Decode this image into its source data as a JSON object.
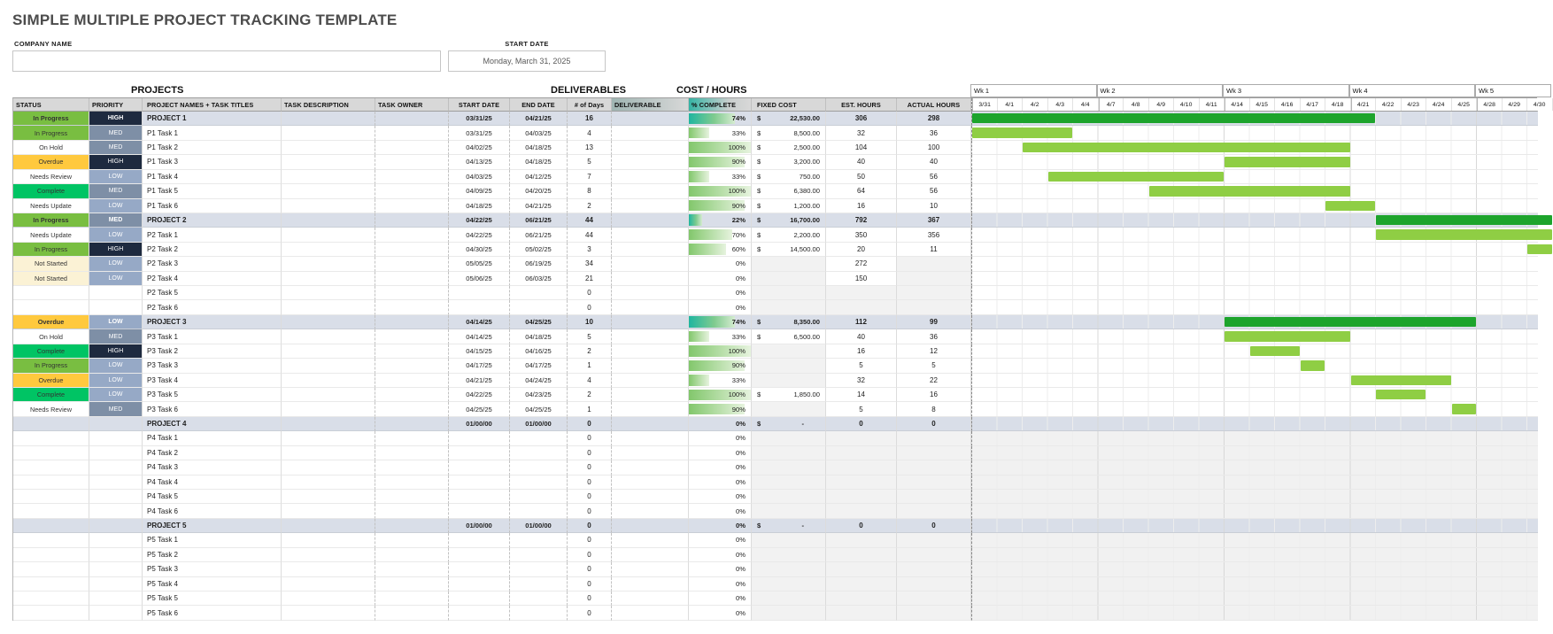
{
  "title": "SIMPLE MULTIPLE PROJECT TRACKING TEMPLATE",
  "form": {
    "company_name_label": "COMPANY NAME",
    "company_name_value": "",
    "start_date_label": "START DATE",
    "start_date_value": "Monday, March 31, 2025"
  },
  "section_labels": {
    "projects": "PROJECTS",
    "deliverables": "DELIVERABLES",
    "cost_hours": "COST / HOURS"
  },
  "colors": {
    "status": {
      "In Progress": "#79BE41",
      "Complete": "#00C464",
      "Overdue": "#FFC93E",
      "On Hold": "#FFFFFF",
      "Needs Review": "#FFFFFF",
      "Needs Update": "#FFFFFF",
      "Not Started": "#FBF2D5"
    },
    "priority": {
      "HIGH": "#1E2A3F",
      "MED": "#7E8FA6",
      "LOW": "#96A9C6"
    },
    "gantt_project_bar": "#1DA42C",
    "gantt_task_bar": "#8FCE44",
    "header_accent_teal": "#35B3A4",
    "project_row_bg": "#D9DEE8"
  },
  "table": {
    "columns": [
      {
        "key": "status",
        "label": "STATUS"
      },
      {
        "key": "priority",
        "label": "PRIORITY"
      },
      {
        "key": "name",
        "label": "PROJECT NAMES + TASK TITLES"
      },
      {
        "key": "desc",
        "label": "TASK DESCRIPTION"
      },
      {
        "key": "owner",
        "label": "TASK OWNER"
      },
      {
        "key": "start",
        "label": "START DATE"
      },
      {
        "key": "end",
        "label": "END DATE"
      },
      {
        "key": "days",
        "label": "# of Days"
      },
      {
        "key": "deliverable",
        "label": "DELIVERABLE"
      },
      {
        "key": "pct",
        "label": "% COMPLETE"
      },
      {
        "key": "fixed",
        "label": "FIXED COST"
      },
      {
        "key": "est",
        "label": "EST. HOURS"
      },
      {
        "key": "actual",
        "label": "ACTUAL HOURS"
      }
    ],
    "rows": [
      {
        "status": "In Progress",
        "priority": "HIGH",
        "name": "PROJECT 1",
        "desc": "",
        "owner": "",
        "start": "03/31/25",
        "end": "04/21/25",
        "days": "16",
        "deliverable": "",
        "pct": "74%",
        "fixed": "22,530.00",
        "est": "306",
        "actual": "298",
        "kind": "project",
        "bar": [
          0,
          15
        ]
      },
      {
        "status": "In Progress",
        "priority": "MED",
        "name": "P1 Task 1",
        "desc": "",
        "owner": "",
        "start": "03/31/25",
        "end": "04/03/25",
        "days": "4",
        "deliverable": "",
        "pct": "33%",
        "fixed": "8,500.00",
        "est": "32",
        "actual": "36",
        "kind": "task",
        "bar": [
          0,
          3
        ]
      },
      {
        "status": "On Hold",
        "priority": "MED",
        "name": "P1 Task 2",
        "desc": "",
        "owner": "",
        "start": "04/02/25",
        "end": "04/18/25",
        "days": "13",
        "deliverable": "",
        "pct": "100%",
        "fixed": "2,500.00",
        "est": "104",
        "actual": "100",
        "kind": "task",
        "bar": [
          2,
          14
        ]
      },
      {
        "status": "Overdue",
        "priority": "HIGH",
        "name": "P1 Task 3",
        "desc": "",
        "owner": "",
        "start": "04/13/25",
        "end": "04/18/25",
        "days": "5",
        "deliverable": "",
        "pct": "90%",
        "fixed": "3,200.00",
        "est": "40",
        "actual": "40",
        "kind": "task",
        "bar": [
          10,
          14
        ]
      },
      {
        "status": "Needs Review",
        "priority": "LOW",
        "name": "P1 Task 4",
        "desc": "",
        "owner": "",
        "start": "04/03/25",
        "end": "04/12/25",
        "days": "7",
        "deliverable": "",
        "pct": "33%",
        "fixed": "750.00",
        "est": "50",
        "actual": "56",
        "kind": "task",
        "bar": [
          3,
          9
        ]
      },
      {
        "status": "Complete",
        "priority": "MED",
        "name": "P1 Task 5",
        "desc": "",
        "owner": "",
        "start": "04/09/25",
        "end": "04/20/25",
        "days": "8",
        "deliverable": "",
        "pct": "100%",
        "fixed": "6,380.00",
        "est": "64",
        "actual": "56",
        "kind": "task",
        "bar": [
          7,
          14
        ]
      },
      {
        "status": "Needs Update",
        "priority": "LOW",
        "name": "P1 Task 6",
        "desc": "",
        "owner": "",
        "start": "04/18/25",
        "end": "04/21/25",
        "days": "2",
        "deliverable": "",
        "pct": "90%",
        "fixed": "1,200.00",
        "est": "16",
        "actual": "10",
        "kind": "task",
        "bar": [
          14,
          15
        ]
      },
      {
        "status": "In Progress",
        "priority": "MED",
        "name": "PROJECT 2",
        "desc": "",
        "owner": "",
        "start": "04/22/25",
        "end": "06/21/25",
        "days": "44",
        "deliverable": "",
        "pct": "22%",
        "fixed": "16,700.00",
        "est": "792",
        "actual": "367",
        "kind": "project",
        "bar": [
          16,
          22
        ]
      },
      {
        "status": "Needs Update",
        "priority": "LOW",
        "name": "P2 Task 1",
        "desc": "",
        "owner": "",
        "start": "04/22/25",
        "end": "06/21/25",
        "days": "44",
        "deliverable": "",
        "pct": "70%",
        "fixed": "2,200.00",
        "est": "350",
        "actual": "356",
        "kind": "task",
        "bar": [
          16,
          22
        ]
      },
      {
        "status": "In Progress",
        "priority": "HIGH",
        "name": "P2 Task 2",
        "desc": "",
        "owner": "",
        "start": "04/30/25",
        "end": "05/02/25",
        "days": "3",
        "deliverable": "",
        "pct": "60%",
        "fixed": "14,500.00",
        "est": "20",
        "actual": "11",
        "kind": "task",
        "bar": [
          22,
          22
        ]
      },
      {
        "status": "Not Started",
        "priority": "LOW",
        "name": "P2 Task 3",
        "desc": "",
        "owner": "",
        "start": "05/05/25",
        "end": "06/19/25",
        "days": "34",
        "deliverable": "",
        "pct": "0%",
        "fixed": "",
        "est": "272",
        "actual": "",
        "kind": "task",
        "bar": null
      },
      {
        "status": "Not Started",
        "priority": "LOW",
        "name": "P2 Task 4",
        "desc": "",
        "owner": "",
        "start": "05/06/25",
        "end": "06/03/25",
        "days": "21",
        "deliverable": "",
        "pct": "0%",
        "fixed": "",
        "est": "150",
        "actual": "",
        "kind": "task",
        "bar": null
      },
      {
        "status": "",
        "priority": "",
        "name": "P2 Task 5",
        "desc": "",
        "owner": "",
        "start": "",
        "end": "",
        "days": "0",
        "deliverable": "",
        "pct": "0%",
        "fixed": "",
        "est": "",
        "actual": "",
        "kind": "task",
        "bar": null
      },
      {
        "status": "",
        "priority": "",
        "name": "P2 Task 6",
        "desc": "",
        "owner": "",
        "start": "",
        "end": "",
        "days": "0",
        "deliverable": "",
        "pct": "0%",
        "fixed": "",
        "est": "",
        "actual": "",
        "kind": "task",
        "bar": null
      },
      {
        "status": "Overdue",
        "priority": "LOW",
        "name": "PROJECT 3",
        "desc": "",
        "owner": "",
        "start": "04/14/25",
        "end": "04/25/25",
        "days": "10",
        "deliverable": "",
        "pct": "74%",
        "fixed": "8,350.00",
        "est": "112",
        "actual": "99",
        "kind": "project",
        "bar": [
          10,
          19
        ]
      },
      {
        "status": "On Hold",
        "priority": "MED",
        "name": "P3 Task 1",
        "desc": "",
        "owner": "",
        "start": "04/14/25",
        "end": "04/18/25",
        "days": "5",
        "deliverable": "",
        "pct": "33%",
        "fixed": "6,500.00",
        "est": "40",
        "actual": "36",
        "kind": "task",
        "bar": [
          10,
          14
        ]
      },
      {
        "status": "Complete",
        "priority": "HIGH",
        "name": "P3 Task 2",
        "desc": "",
        "owner": "",
        "start": "04/15/25",
        "end": "04/16/25",
        "days": "2",
        "deliverable": "",
        "pct": "100%",
        "fixed": "",
        "est": "16",
        "actual": "12",
        "kind": "task",
        "bar": [
          11,
          12
        ]
      },
      {
        "status": "In Progress",
        "priority": "LOW",
        "name": "P3 Task 3",
        "desc": "",
        "owner": "",
        "start": "04/17/25",
        "end": "04/17/25",
        "days": "1",
        "deliverable": "",
        "pct": "90%",
        "fixed": "",
        "est": "5",
        "actual": "5",
        "kind": "task",
        "bar": [
          13,
          13
        ]
      },
      {
        "status": "Overdue",
        "priority": "LOW",
        "name": "P3 Task 4",
        "desc": "",
        "owner": "",
        "start": "04/21/25",
        "end": "04/24/25",
        "days": "4",
        "deliverable": "",
        "pct": "33%",
        "fixed": "",
        "est": "32",
        "actual": "22",
        "kind": "task",
        "bar": [
          15,
          18
        ]
      },
      {
        "status": "Complete",
        "priority": "LOW",
        "name": "P3 Task 5",
        "desc": "",
        "owner": "",
        "start": "04/22/25",
        "end": "04/23/25",
        "days": "2",
        "deliverable": "",
        "pct": "100%",
        "fixed": "1,850.00",
        "est": "14",
        "actual": "16",
        "kind": "task",
        "bar": [
          16,
          17
        ]
      },
      {
        "status": "Needs Review",
        "priority": "MED",
        "name": "P3 Task 6",
        "desc": "",
        "owner": "",
        "start": "04/25/25",
        "end": "04/25/25",
        "days": "1",
        "deliverable": "",
        "pct": "90%",
        "fixed": "",
        "est": "5",
        "actual": "8",
        "kind": "task",
        "bar": [
          19,
          19
        ]
      },
      {
        "status": "",
        "priority": "",
        "name": "PROJECT 4",
        "desc": "",
        "owner": "",
        "start": "01/00/00",
        "end": "01/00/00",
        "days": "0",
        "deliverable": "",
        "pct": "0%",
        "fixed": "-",
        "est": "0",
        "actual": "0",
        "kind": "project",
        "bar": null
      },
      {
        "status": "",
        "priority": "",
        "name": "P4 Task 1",
        "desc": "",
        "owner": "",
        "start": "",
        "end": "",
        "days": "0",
        "deliverable": "",
        "pct": "0%",
        "fixed": "",
        "est": "",
        "actual": "",
        "kind": "task",
        "bar": null
      },
      {
        "status": "",
        "priority": "",
        "name": "P4 Task 2",
        "desc": "",
        "owner": "",
        "start": "",
        "end": "",
        "days": "0",
        "deliverable": "",
        "pct": "0%",
        "fixed": "",
        "est": "",
        "actual": "",
        "kind": "task",
        "bar": null
      },
      {
        "status": "",
        "priority": "",
        "name": "P4 Task 3",
        "desc": "",
        "owner": "",
        "start": "",
        "end": "",
        "days": "0",
        "deliverable": "",
        "pct": "0%",
        "fixed": "",
        "est": "",
        "actual": "",
        "kind": "task",
        "bar": null
      },
      {
        "status": "",
        "priority": "",
        "name": "P4 Task 4",
        "desc": "",
        "owner": "",
        "start": "",
        "end": "",
        "days": "0",
        "deliverable": "",
        "pct": "0%",
        "fixed": "",
        "est": "",
        "actual": "",
        "kind": "task",
        "bar": null
      },
      {
        "status": "",
        "priority": "",
        "name": "P4 Task 5",
        "desc": "",
        "owner": "",
        "start": "",
        "end": "",
        "days": "0",
        "deliverable": "",
        "pct": "0%",
        "fixed": "",
        "est": "",
        "actual": "",
        "kind": "task",
        "bar": null
      },
      {
        "status": "",
        "priority": "",
        "name": "P4 Task 6",
        "desc": "",
        "owner": "",
        "start": "",
        "end": "",
        "days": "0",
        "deliverable": "",
        "pct": "0%",
        "fixed": "",
        "est": "",
        "actual": "",
        "kind": "task",
        "bar": null
      },
      {
        "status": "",
        "priority": "",
        "name": "PROJECT 5",
        "desc": "",
        "owner": "",
        "start": "01/00/00",
        "end": "01/00/00",
        "days": "0",
        "deliverable": "",
        "pct": "0%",
        "fixed": "-",
        "est": "0",
        "actual": "0",
        "kind": "project",
        "bar": null
      },
      {
        "status": "",
        "priority": "",
        "name": "P5 Task 1",
        "desc": "",
        "owner": "",
        "start": "",
        "end": "",
        "days": "0",
        "deliverable": "",
        "pct": "0%",
        "fixed": "",
        "est": "",
        "actual": "",
        "kind": "task",
        "bar": null
      },
      {
        "status": "",
        "priority": "",
        "name": "P5 Task 2",
        "desc": "",
        "owner": "",
        "start": "",
        "end": "",
        "days": "0",
        "deliverable": "",
        "pct": "0%",
        "fixed": "",
        "est": "",
        "actual": "",
        "kind": "task",
        "bar": null
      },
      {
        "status": "",
        "priority": "",
        "name": "P5 Task 3",
        "desc": "",
        "owner": "",
        "start": "",
        "end": "",
        "days": "0",
        "deliverable": "",
        "pct": "0%",
        "fixed": "",
        "est": "",
        "actual": "",
        "kind": "task",
        "bar": null
      },
      {
        "status": "",
        "priority": "",
        "name": "P5 Task 4",
        "desc": "",
        "owner": "",
        "start": "",
        "end": "",
        "days": "0",
        "deliverable": "",
        "pct": "0%",
        "fixed": "",
        "est": "",
        "actual": "",
        "kind": "task",
        "bar": null
      },
      {
        "status": "",
        "priority": "",
        "name": "P5 Task 5",
        "desc": "",
        "owner": "",
        "start": "",
        "end": "",
        "days": "0",
        "deliverable": "",
        "pct": "0%",
        "fixed": "",
        "est": "",
        "actual": "",
        "kind": "task",
        "bar": null
      },
      {
        "status": "",
        "priority": "",
        "name": "P5 Task 6",
        "desc": "",
        "owner": "",
        "start": "",
        "end": "",
        "days": "0",
        "deliverable": "",
        "pct": "0%",
        "fixed": "",
        "est": "",
        "actual": "",
        "kind": "task",
        "bar": null
      }
    ]
  },
  "gantt": {
    "weeks": [
      {
        "label": "Wk 1",
        "days": [
          "3/31",
          "4/1",
          "4/2",
          "4/3",
          "4/4"
        ]
      },
      {
        "label": "Wk 2",
        "days": [
          "4/7",
          "4/8",
          "4/9",
          "4/10",
          "4/11"
        ]
      },
      {
        "label": "Wk 3",
        "days": [
          "4/14",
          "4/15",
          "4/16",
          "4/17",
          "4/18"
        ]
      },
      {
        "label": "Wk 4",
        "days": [
          "4/21",
          "4/22",
          "4/23",
          "4/24",
          "4/25"
        ]
      },
      {
        "label": "Wk 5",
        "days": [
          "4/28",
          "4/29",
          "4/30"
        ]
      }
    ]
  }
}
